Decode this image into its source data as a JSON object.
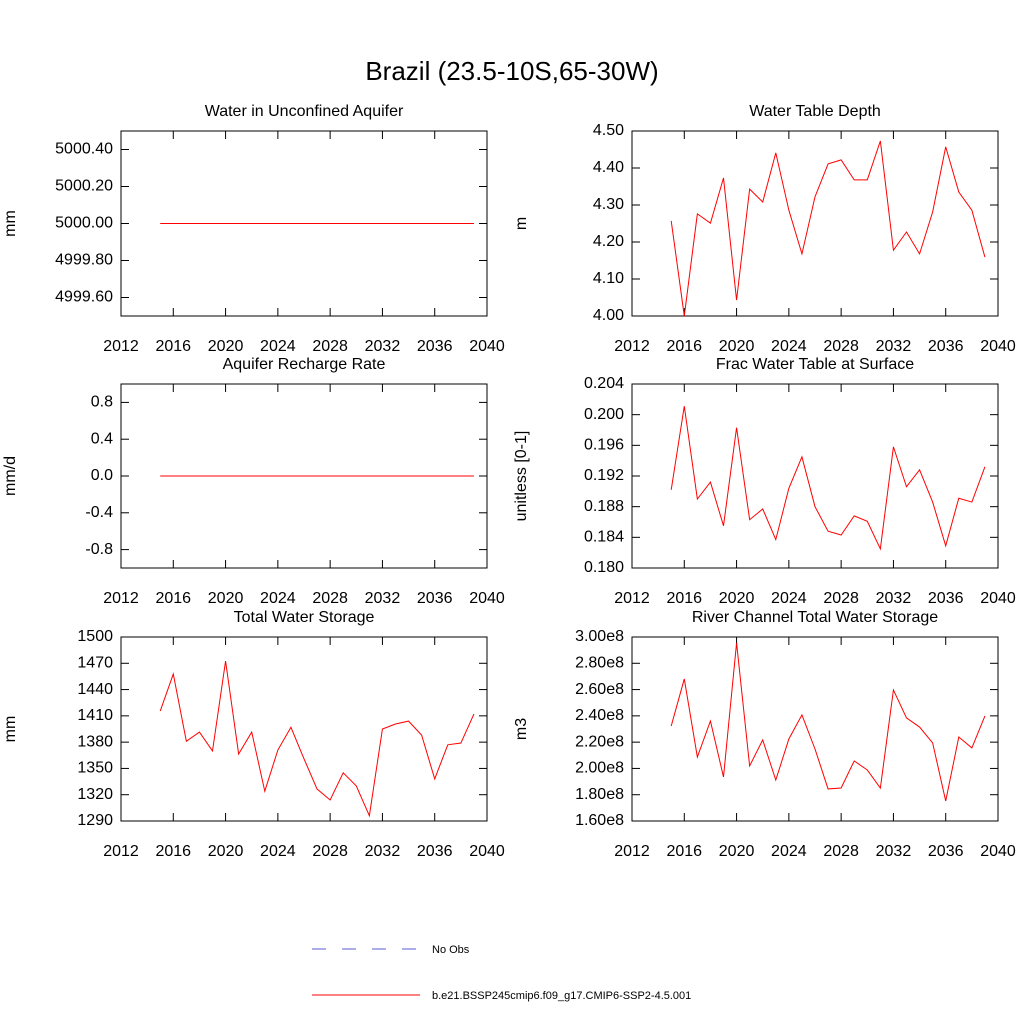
{
  "title": "Brazil (23.5-10S,65-30W)",
  "legend": [
    {
      "name": "No Obs",
      "color": "#5b5bd6",
      "dashed": true
    },
    {
      "name": "b.e21.BSSP245cmip6.f09_g17.CMIP6-SSP2-4.5.001",
      "color": "#ff0000",
      "dashed": false
    }
  ],
  "chart_data": [
    {
      "type": "line",
      "title": "Water in Unconfined Aquifer",
      "y_label": "mm",
      "color": "#ff0000",
      "x": [
        2015,
        2016,
        2017,
        2018,
        2019,
        2020,
        2021,
        2022,
        2023,
        2024,
        2025,
        2026,
        2027,
        2028,
        2029,
        2030,
        2031,
        2032,
        2033,
        2034,
        2035,
        2036,
        2037,
        2038,
        2039
      ],
      "values": [
        5000,
        5000,
        5000,
        5000,
        5000,
        5000,
        5000,
        5000,
        5000,
        5000,
        5000,
        5000,
        5000,
        5000,
        5000,
        5000,
        5000,
        5000,
        5000,
        5000,
        5000,
        5000,
        5000,
        5000,
        5000
      ],
      "xlim": [
        2012,
        2040
      ],
      "xticks": [
        2012,
        2016,
        2020,
        2024,
        2028,
        2032,
        2036,
        2040
      ],
      "ylim": [
        4999.5,
        5000.5
      ],
      "yticks": [
        {
          "value": 4999.6,
          "label": "4999.60"
        },
        {
          "value": 4999.8,
          "label": "4999.80"
        },
        {
          "value": 5000,
          "label": "5000.00"
        },
        {
          "value": 5000.2,
          "label": "5000.20"
        },
        {
          "value": 5000.4,
          "label": "5000.40"
        }
      ]
    },
    {
      "type": "line",
      "title": "Water Table Depth",
      "y_label": "m",
      "color": "#ff0000",
      "x": [
        2015,
        2016,
        2017,
        2018,
        2019,
        2020,
        2021,
        2022,
        2023,
        2024,
        2025,
        2026,
        2027,
        2028,
        2029,
        2030,
        2031,
        2032,
        2033,
        2034,
        2035,
        2036,
        2037,
        2038,
        2039
      ],
      "values": [
        4.257,
        4.0,
        4.276,
        4.251,
        4.373,
        4.043,
        4.343,
        4.308,
        4.441,
        4.286,
        4.168,
        4.322,
        4.411,
        4.422,
        4.368,
        4.368,
        4.473,
        4.178,
        4.227,
        4.168,
        4.281,
        4.457,
        4.335,
        4.286,
        4.159
      ],
      "xlim": [
        2012,
        2040
      ],
      "xticks": [
        2012,
        2016,
        2020,
        2024,
        2028,
        2032,
        2036,
        2040
      ],
      "ylim": [
        4.0,
        4.5
      ],
      "yticks": [
        {
          "value": 4.0,
          "label": "4.00"
        },
        {
          "value": 4.1,
          "label": "4.10"
        },
        {
          "value": 4.2,
          "label": "4.20"
        },
        {
          "value": 4.3,
          "label": "4.30"
        },
        {
          "value": 4.4,
          "label": "4.40"
        },
        {
          "value": 4.5,
          "label": "4.50"
        }
      ]
    },
    {
      "type": "line",
      "title": "Aquifer Recharge Rate",
      "y_label": "mm/d",
      "color": "#ff0000",
      "x": [
        2015,
        2016,
        2017,
        2018,
        2019,
        2020,
        2021,
        2022,
        2023,
        2024,
        2025,
        2026,
        2027,
        2028,
        2029,
        2030,
        2031,
        2032,
        2033,
        2034,
        2035,
        2036,
        2037,
        2038,
        2039
      ],
      "values": [
        0,
        0,
        0,
        0,
        0,
        0,
        0,
        0,
        0,
        0,
        0,
        0,
        0,
        0,
        0,
        0,
        0,
        0,
        0,
        0,
        0,
        0,
        0,
        0,
        0
      ],
      "xlim": [
        2012,
        2040
      ],
      "xticks": [
        2012,
        2016,
        2020,
        2024,
        2028,
        2032,
        2036,
        2040
      ],
      "ylim": [
        -1,
        1
      ],
      "yticks": [
        -0.8,
        -0.4,
        {
          "value": 0,
          "label": "0.0"
        },
        0.4,
        0.8
      ]
    },
    {
      "type": "line",
      "title": "Frac Water Table at Surface",
      "y_label": "unitless [0-1]",
      "color": "#ff0000",
      "x": [
        2015,
        2016,
        2017,
        2018,
        2019,
        2020,
        2021,
        2022,
        2023,
        2024,
        2025,
        2026,
        2027,
        2028,
        2029,
        2030,
        2031,
        2032,
        2033,
        2034,
        2035,
        2036,
        2037,
        2038,
        2039
      ],
      "values": [
        0.1902,
        0.2011,
        0.189,
        0.1912,
        0.1855,
        0.1983,
        0.1863,
        0.1877,
        0.1837,
        0.1904,
        0.1945,
        0.188,
        0.1848,
        0.1843,
        0.1868,
        0.1861,
        0.1825,
        0.1958,
        0.1906,
        0.1928,
        0.1886,
        0.1829,
        0.1891,
        0.1886,
        0.1932
      ],
      "xlim": [
        2012,
        2040
      ],
      "xticks": [
        2012,
        2016,
        2020,
        2024,
        2028,
        2032,
        2036,
        2040
      ],
      "ylim": [
        0.18,
        0.204
      ],
      "yticks": [
        {
          "value": 0.18,
          "label": "0.180"
        },
        0.184,
        0.188,
        0.192,
        0.196,
        {
          "value": 0.2,
          "label": "0.200"
        },
        0.204
      ]
    },
    {
      "type": "line",
      "title": "Total Water Storage",
      "y_label": "mm",
      "color": "#ff0000",
      "x": [
        2015,
        2016,
        2017,
        2018,
        2019,
        2020,
        2021,
        2022,
        2023,
        2024,
        2025,
        2026,
        2027,
        2028,
        2029,
        2030,
        2031,
        2032,
        2033,
        2034,
        2035,
        2036,
        2037,
        2038,
        2039
      ],
      "values": [
        1415.5,
        1457.7,
        1381,
        1391.5,
        1370,
        1472.6,
        1366.5,
        1391.5,
        1324,
        1371,
        1397,
        1361,
        1326.5,
        1314,
        1345,
        1330,
        1296,
        1395,
        1400.7,
        1404,
        1388,
        1338,
        1377,
        1379,
        1412
      ],
      "xlim": [
        2012,
        2040
      ],
      "xticks": [
        2012,
        2016,
        2020,
        2024,
        2028,
        2032,
        2036,
        2040
      ],
      "ylim": [
        1290,
        1500
      ],
      "yticks": [
        1290,
        1320,
        1350,
        1380,
        1410,
        1440,
        1470,
        1500
      ]
    },
    {
      "type": "line",
      "title": "River Channel Total Water Storage",
      "y_label": "m3",
      "color": "#ff0000",
      "x": [
        2015,
        2016,
        2017,
        2018,
        2019,
        2020,
        2021,
        2022,
        2023,
        2024,
        2025,
        2026,
        2027,
        2028,
        2029,
        2030,
        2031,
        2032,
        2033,
        2034,
        2035,
        2036,
        2037,
        2038,
        2039
      ],
      "values": [
        232300000,
        268100000,
        208700000,
        236100000,
        193500000,
        295500000,
        201900000,
        221700000,
        191200000,
        222400000,
        240700000,
        214800000,
        184400000,
        185100000,
        205700000,
        198800000,
        185100000,
        259700000,
        238400000,
        231500000,
        219400000,
        175200000,
        223900000,
        215600000,
        239900000
      ],
      "xlim": [
        2012,
        2040
      ],
      "xticks": [
        2012,
        2016,
        2020,
        2024,
        2028,
        2032,
        2036,
        2040
      ],
      "ylim": [
        160000000,
        300000000
      ],
      "yticks": [
        {
          "value": 160000000,
          "label": "1.60e8"
        },
        {
          "value": 180000000,
          "label": "1.80e8"
        },
        {
          "value": 200000000,
          "label": "2.00e8"
        },
        {
          "value": 220000000,
          "label": "2.20e8"
        },
        {
          "value": 240000000,
          "label": "2.40e8"
        },
        {
          "value": 260000000,
          "label": "2.60e8"
        },
        {
          "value": 280000000,
          "label": "2.80e8"
        },
        {
          "value": 300000000,
          "label": "3.00e8"
        }
      ]
    }
  ]
}
